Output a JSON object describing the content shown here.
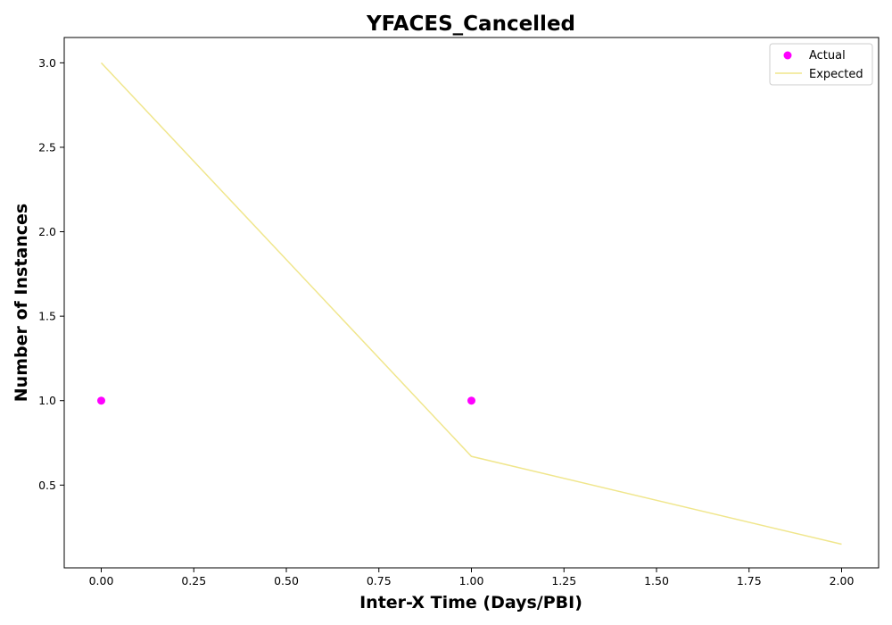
{
  "chart_data": {
    "type": "scatter",
    "title": "YFACES_Cancelled",
    "xlabel": "Inter-X Time (Days/PBI)",
    "ylabel": "Number of Instances",
    "xlim": [
      -0.1,
      2.1
    ],
    "ylim": [
      0.01,
      3.15
    ],
    "x_ticks": [
      0.0,
      0.25,
      0.5,
      0.75,
      1.0,
      1.25,
      1.5,
      1.75,
      2.0
    ],
    "x_tick_labels": [
      "0.00",
      "0.25",
      "0.50",
      "0.75",
      "1.00",
      "1.25",
      "1.50",
      "1.75",
      "2.00"
    ],
    "y_ticks": [
      0.5,
      1.0,
      1.5,
      2.0,
      2.5,
      3.0
    ],
    "y_tick_labels": [
      "0.5",
      "1.0",
      "1.5",
      "2.0",
      "2.5",
      "3.0"
    ],
    "grid": false,
    "legend_position": "top-right",
    "series": [
      {
        "name": "Actual",
        "kind": "scatter",
        "color": "#ff00ff",
        "x": [
          0,
          1
        ],
        "y": [
          1,
          1
        ]
      },
      {
        "name": "Expected",
        "kind": "line",
        "color": "#f0e68c",
        "x": [
          0,
          1,
          2
        ],
        "y": [
          3.0,
          0.67,
          0.15
        ]
      }
    ]
  }
}
